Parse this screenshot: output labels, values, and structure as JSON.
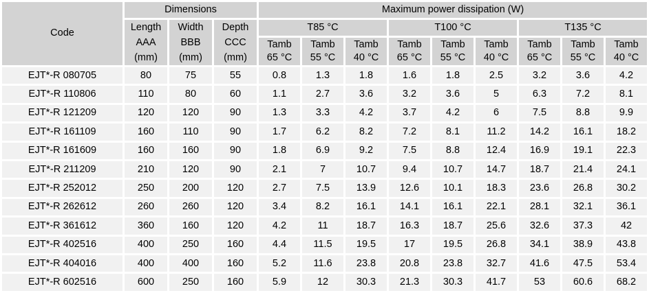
{
  "table": {
    "code_header": "Code",
    "dimensions_header": "Dimensions",
    "power_header": "Maximum power dissipation (W)",
    "dimension_columns": [
      {
        "name": "Length",
        "designator": "AAA",
        "unit": "(mm)"
      },
      {
        "name": "Width",
        "designator": "BBB",
        "unit": "(mm)"
      },
      {
        "name": "Depth",
        "designator": "CCC",
        "unit": "(mm)"
      }
    ],
    "temperature_groups": [
      "T85 °C",
      "T100 °C",
      "T135 °C"
    ],
    "ambient_columns": [
      {
        "label": "Tamb",
        "temp": "65 °C"
      },
      {
        "label": "Tamb",
        "temp": "55 °C"
      },
      {
        "label": "Tamb",
        "temp": "40 °C"
      },
      {
        "label": "Tamb",
        "temp": "65 °C"
      },
      {
        "label": "Tamb",
        "temp": "55 °C"
      },
      {
        "label": "Tamb",
        "temp": "40 °C"
      },
      {
        "label": "Tamb",
        "temp": "65 °C"
      },
      {
        "label": "Tamb",
        "temp": "55 °C"
      },
      {
        "label": "Tamb",
        "temp": "40 °C"
      }
    ],
    "rows": [
      {
        "code": "EJT*-R 080705",
        "length": "80",
        "width": "75",
        "depth": "55",
        "power": [
          "0.8",
          "1.3",
          "1.8",
          "1.6",
          "1.8",
          "2.5",
          "3.2",
          "3.6",
          "4.2"
        ]
      },
      {
        "code": "EJT*-R 110806",
        "length": "110",
        "width": "80",
        "depth": "60",
        "power": [
          "1.1",
          "2.7",
          "3.6",
          "3.2",
          "3.6",
          "5",
          "6.3",
          "7.2",
          "8.1"
        ]
      },
      {
        "code": "EJT*-R 121209",
        "length": "120",
        "width": "120",
        "depth": "90",
        "power": [
          "1.3",
          "3.3",
          "4.2",
          "3.7",
          "4.2",
          "6",
          "7.5",
          "8.8",
          "9.9"
        ]
      },
      {
        "code": "EJT*-R 161109",
        "length": "160",
        "width": "110",
        "depth": "90",
        "power": [
          "1.7",
          "6.2",
          "8.2",
          "7.2",
          "8.1",
          "11.2",
          "14.2",
          "16.1",
          "18.2"
        ]
      },
      {
        "code": "EJT*-R 161609",
        "length": "160",
        "width": "160",
        "depth": "90",
        "power": [
          "1.8",
          "6.9",
          "9.2",
          "7.5",
          "8.8",
          "12.4",
          "16.9",
          "19.1",
          "22.3"
        ]
      },
      {
        "code": "EJT*-R 211209",
        "length": "210",
        "width": "120",
        "depth": "90",
        "power": [
          "2.1",
          "7",
          "10.7",
          "9.4",
          "10.7",
          "14.7",
          "18.7",
          "21.4",
          "24.1"
        ]
      },
      {
        "code": "EJT*-R 252012",
        "length": "250",
        "width": "200",
        "depth": "120",
        "power": [
          "2.7",
          "7.5",
          "13.9",
          "12.6",
          "10.1",
          "18.3",
          "23.6",
          "26.8",
          "30.2"
        ]
      },
      {
        "code": "EJT*-R 262612",
        "length": "260",
        "width": "260",
        "depth": "120",
        "power": [
          "3.4",
          "8.2",
          "16.1",
          "14.1",
          "16.1",
          "22.1",
          "28.1",
          "32.1",
          "36.1"
        ]
      },
      {
        "code": "EJT*-R 361612",
        "length": "360",
        "width": "160",
        "depth": "120",
        "power": [
          "4.2",
          "11",
          "18.7",
          "16.3",
          "18.7",
          "25.6",
          "32.6",
          "37.3",
          "42"
        ]
      },
      {
        "code": "EJT*-R 402516",
        "length": "400",
        "width": "250",
        "depth": "160",
        "power": [
          "4.4",
          "11.5",
          "19.5",
          "17",
          "19.5",
          "26.8",
          "34.1",
          "38.9",
          "43.8"
        ]
      },
      {
        "code": "EJT*-R 404016",
        "length": "400",
        "width": "400",
        "depth": "160",
        "power": [
          "5.2",
          "11.6",
          "23.8",
          "20.8",
          "23.8",
          "32.7",
          "41.6",
          "47.5",
          "53.4"
        ]
      },
      {
        "code": "EJT*-R 602516",
        "length": "600",
        "width": "250",
        "depth": "160",
        "power": [
          "5.9",
          "12",
          "30.3",
          "21.3",
          "30.3",
          "41.7",
          "53",
          "60.6",
          "68.2"
        ]
      }
    ]
  },
  "colors": {
    "header_bg": "#d3d3d3",
    "row_bg": "#f1f1f1",
    "grid": "#ffffff",
    "text": "#000000"
  }
}
